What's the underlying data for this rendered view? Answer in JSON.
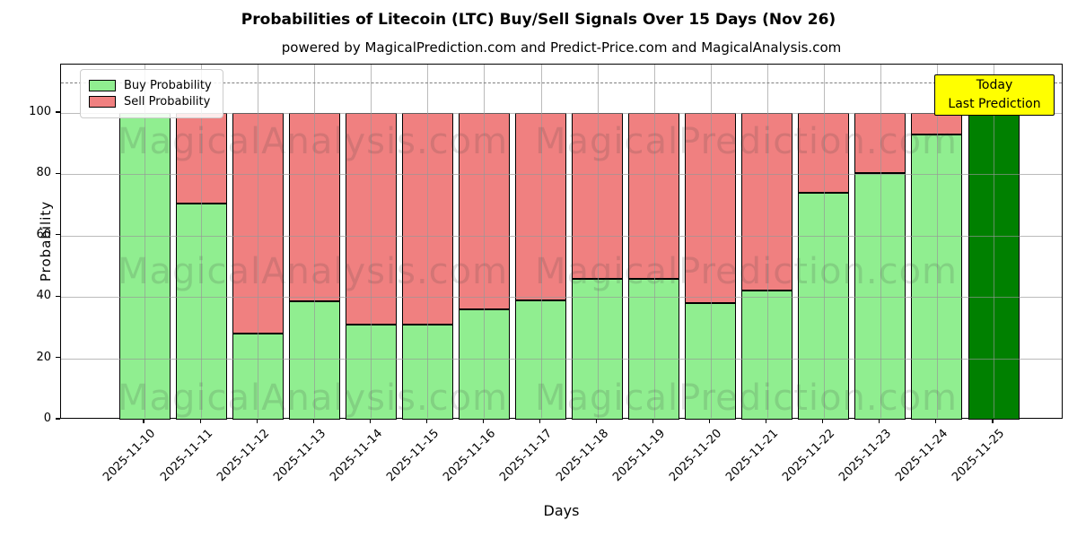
{
  "title": "Probabilities of Litecoin (LTC) Buy/Sell Signals Over 15 Days (Nov 26)",
  "subtitle": "powered by MagicalPrediction.com and Predict-Price.com and MagicalAnalysis.com",
  "axes": {
    "xlabel": "Days",
    "ylabel": "Probability",
    "yticks": [
      0,
      20,
      40,
      60,
      80,
      100
    ],
    "ylim": [
      0,
      115.8
    ],
    "grid": "on",
    "dashed_line_y": 110
  },
  "legend": {
    "position": "upper-left",
    "items": [
      {
        "label": "Buy Probability",
        "color": "#90EE90"
      },
      {
        "label": "Sell Probability",
        "color": "#F08080"
      }
    ]
  },
  "annotation_box": {
    "line1": "Today",
    "line2": "Last Prediction",
    "bg_color": "#FFFF00",
    "border_color": "#000000"
  },
  "watermarks": {
    "left_text": "MagicalAnalysis.com",
    "right_text": "MagicalPrediction.com"
  },
  "chart_data": {
    "type": "bar",
    "stacked": true,
    "categories": [
      "2025-11-10",
      "2025-11-11",
      "2025-11-12",
      "2025-11-13",
      "2025-11-14",
      "2025-11-15",
      "2025-11-16",
      "2025-11-17",
      "2025-11-18",
      "2025-11-19",
      "2025-11-20",
      "2025-11-21",
      "2025-11-22",
      "2025-11-23",
      "2025-11-24",
      "2025-11-25"
    ],
    "series": [
      {
        "name": "Buy Probability",
        "color": "#90EE90",
        "values": [
          100,
          70.5,
          28,
          38.5,
          31,
          31,
          36,
          39,
          46,
          46,
          38,
          42,
          74,
          80.5,
          93,
          100
        ]
      },
      {
        "name": "Sell Probability",
        "color": "#F08080",
        "values": [
          0,
          29.5,
          72,
          61.5,
          69,
          69,
          64,
          61,
          54,
          54,
          62,
          58,
          26,
          19.5,
          7,
          0
        ]
      }
    ],
    "today_bar": {
      "index": 15,
      "category": "2025-11-25",
      "color": "#008000",
      "label": "Today Last Prediction"
    },
    "bar_edge_color": "#000000",
    "title": "Probabilities of Litecoin (LTC) Buy/Sell Signals Over 15 Days (Nov 26)",
    "xlabel": "Days",
    "ylabel": "Probability"
  }
}
